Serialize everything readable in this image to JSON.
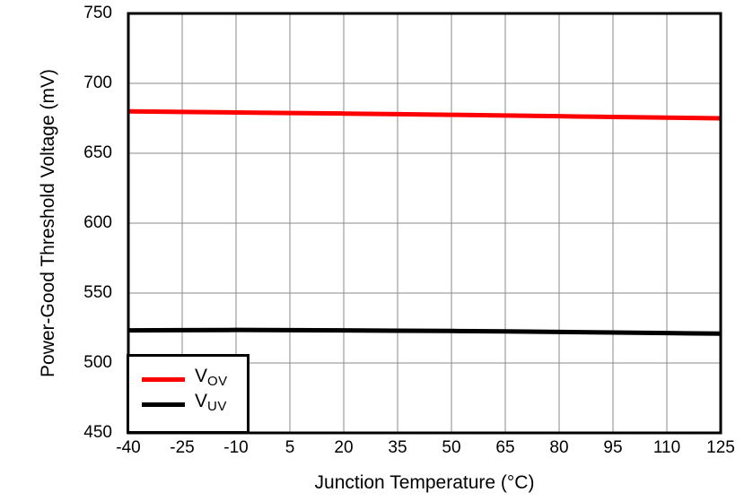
{
  "chart_data": {
    "type": "line",
    "title": "",
    "xlabel": "Junction Temperature (°C)",
    "ylabel": "Power-Good Threshold Voltage (mV)",
    "xlim": [
      -40,
      125
    ],
    "ylim": [
      450,
      750
    ],
    "x_ticks": [
      -40,
      -25,
      -10,
      5,
      20,
      35,
      50,
      65,
      80,
      95,
      110,
      125
    ],
    "y_ticks": [
      450,
      500,
      550,
      600,
      650,
      700,
      750
    ],
    "grid": true,
    "legend_position": "lower left",
    "x": [
      -40,
      -25,
      -10,
      5,
      20,
      35,
      50,
      65,
      80,
      95,
      110,
      125
    ],
    "series": [
      {
        "name": "VOV",
        "label_main": "V",
        "label_sub": "OV",
        "color": "#FF0000",
        "values": [
          680,
          679.6,
          679.2,
          678.8,
          678.4,
          678,
          677.5,
          677,
          676.5,
          676,
          675.5,
          675
        ]
      },
      {
        "name": "VUV",
        "label_main": "V",
        "label_sub": "UV",
        "color": "#000000",
        "values": [
          523.3,
          523.5,
          523.6,
          523.5,
          523.3,
          523.1,
          522.9,
          522.6,
          522.2,
          521.8,
          521.4,
          521
        ]
      }
    ],
    "colors": {
      "grid": "#8A8A8A",
      "axis": "#000000",
      "background": "#FFFFFF"
    }
  }
}
